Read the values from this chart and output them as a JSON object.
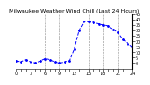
{
  "title": "Milwaukee Weather Wind Chill (Last 24 Hours)",
  "background_color": "#ffffff",
  "line_color": "#0000ff",
  "grid_color": "#888888",
  "ylim": [
    -5,
    45
  ],
  "ytick_values": [
    0,
    5,
    10,
    15,
    20,
    25,
    30,
    35,
    40,
    45
  ],
  "ytick_labels": [
    "0",
    "5",
    "10",
    "15",
    "20",
    "25",
    "30",
    "35",
    "40",
    "45"
  ],
  "x_values": [
    0,
    1,
    2,
    3,
    4,
    5,
    6,
    7,
    8,
    9,
    10,
    11,
    12,
    13,
    14,
    15,
    16,
    17,
    18,
    19,
    20,
    21,
    22,
    23,
    24
  ],
  "y_values": [
    2,
    1,
    3,
    1,
    0,
    2,
    4,
    3,
    1,
    0,
    1,
    2,
    13,
    30,
    38,
    38,
    37,
    36,
    35,
    34,
    31,
    28,
    22,
    18,
    15
  ],
  "vgrid_positions": [
    3,
    6,
    9,
    12,
    15,
    18,
    21
  ],
  "xtick_positions": [
    0,
    3,
    6,
    9,
    12,
    15,
    18,
    21,
    24
  ],
  "xtick_labels": [
    "0",
    "3",
    "6",
    "9",
    "12",
    "15",
    "18",
    "21",
    "24"
  ],
  "title_fontsize": 4.5,
  "tick_fontsize": 3.5,
  "marker": ".",
  "markersize": 2.0,
  "linewidth": 0.7,
  "linestyle": "--",
  "right_border_x": 24
}
